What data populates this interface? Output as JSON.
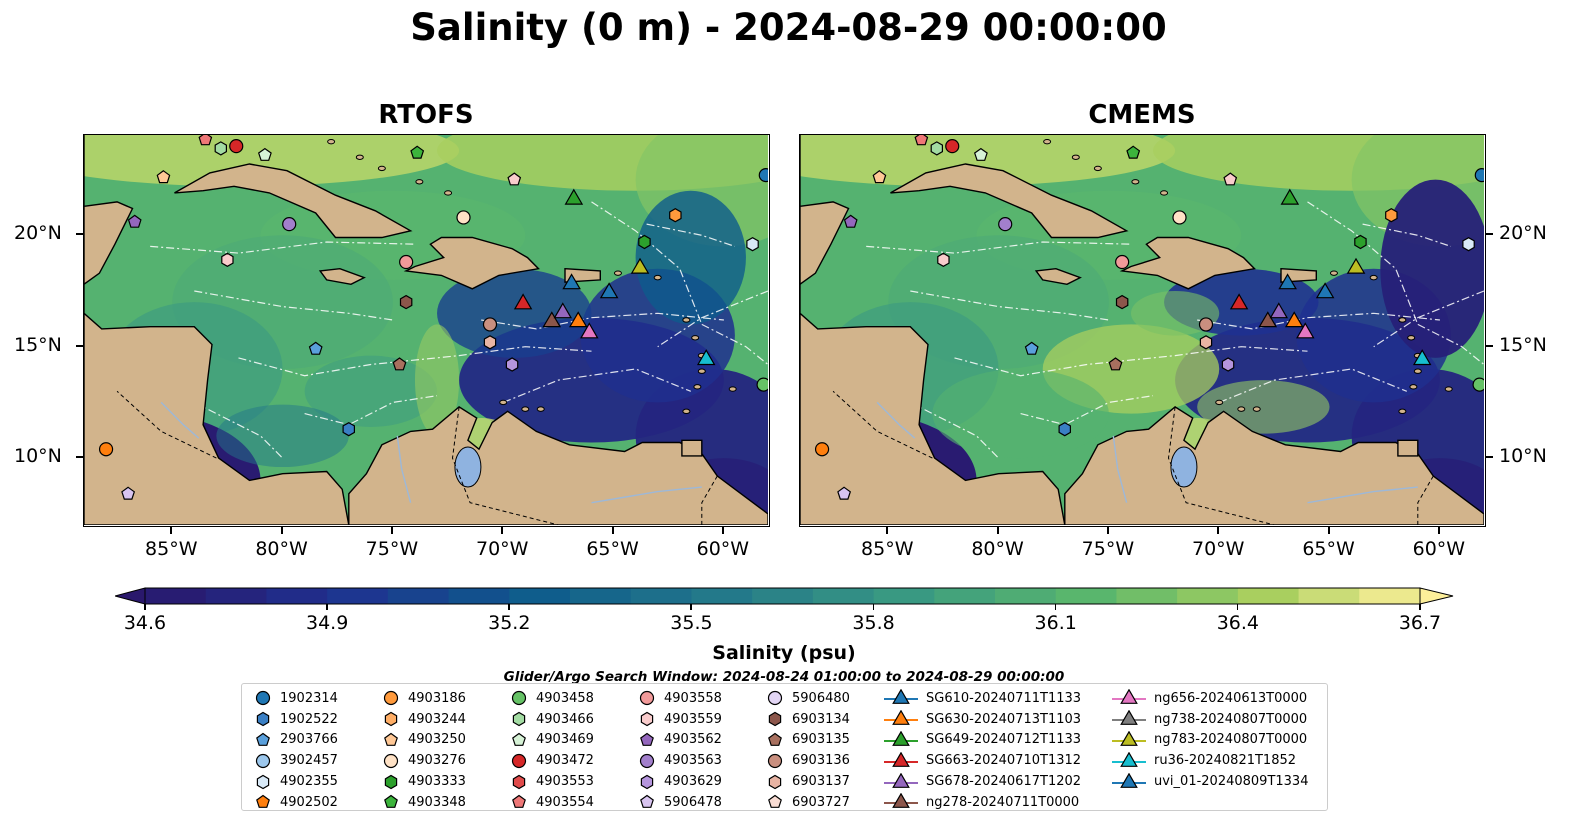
{
  "title": "Salinity (0 m) - 2024-08-29 00:00:00",
  "panels": [
    {
      "title": "RTOFS",
      "model": "rtofs"
    },
    {
      "title": "CMEMS",
      "model": "cmems"
    }
  ],
  "axes": {
    "lon_ticks": [
      "85°W",
      "80°W",
      "75°W",
      "70°W",
      "65°W",
      "60°W"
    ],
    "lon_values": [
      -85,
      -80,
      -75,
      -70,
      -65,
      -60
    ],
    "lat_ticks": [
      "20°N",
      "15°N",
      "10°N"
    ],
    "lat_values": [
      20,
      15,
      10
    ],
    "lon_range": [
      -89,
      -58
    ],
    "lat_range": [
      7,
      24.5
    ]
  },
  "colorbar": {
    "label": "Salinity (psu)",
    "ticks": [
      "34.6",
      "34.9",
      "35.2",
      "35.5",
      "35.8",
      "36.1",
      "36.4",
      "36.7"
    ],
    "range": [
      34.6,
      36.7
    ],
    "extend": "both",
    "colormap": "haline"
  },
  "search_window": "Glider/Argo Search Window: 2024-08-24 01:00:00 to 2024-08-29 00:00:00",
  "legend": {
    "columns": [
      [
        {
          "label": "1902314",
          "marker": "circle",
          "color": "#1f77b4"
        },
        {
          "label": "1902522",
          "marker": "hexagon",
          "color": "#3a7fc4"
        },
        {
          "label": "2903766",
          "marker": "pentagon",
          "color": "#5aa0dc"
        },
        {
          "label": "3902457",
          "marker": "circle",
          "color": "#9cc7ec"
        },
        {
          "label": "4902355",
          "marker": "hexagon",
          "color": "#d8e9f7"
        },
        {
          "label": "4902502",
          "marker": "pentagon",
          "color": "#ff7f0e"
        }
      ],
      [
        {
          "label": "4903186",
          "marker": "circle",
          "color": "#ff9a3c"
        },
        {
          "label": "4903244",
          "marker": "hexagon",
          "color": "#ffae66"
        },
        {
          "label": "4903250",
          "marker": "pentagon",
          "color": "#ffc896"
        },
        {
          "label": "4903276",
          "marker": "circle",
          "color": "#ffe2c6"
        },
        {
          "label": "4903333",
          "marker": "hexagon",
          "color": "#2ca02c"
        },
        {
          "label": "4903348",
          "marker": "pentagon",
          "color": "#3cb43c"
        }
      ],
      [
        {
          "label": "4903458",
          "marker": "circle",
          "color": "#66c266"
        },
        {
          "label": "4903466",
          "marker": "hexagon",
          "color": "#a3dca3"
        },
        {
          "label": "4903469",
          "marker": "pentagon",
          "color": "#d6f2d6"
        },
        {
          "label": "4903472",
          "marker": "circle",
          "color": "#d62728"
        },
        {
          "label": "4903553",
          "marker": "hexagon",
          "color": "#e04b4b"
        },
        {
          "label": "4903554",
          "marker": "pentagon",
          "color": "#ee7777"
        }
      ],
      [
        {
          "label": "4903558",
          "marker": "circle",
          "color": "#f29a9a"
        },
        {
          "label": "4903559",
          "marker": "hexagon",
          "color": "#f9cccc"
        },
        {
          "label": "4903562",
          "marker": "pentagon",
          "color": "#9467bd"
        },
        {
          "label": "4903563",
          "marker": "circle",
          "color": "#a27fcc"
        },
        {
          "label": "4903629",
          "marker": "hexagon",
          "color": "#b595dd"
        },
        {
          "label": "5906478",
          "marker": "pentagon",
          "color": "#d8c4f0"
        }
      ],
      [
        {
          "label": "5906480",
          "marker": "circle",
          "color": "#e3d6f5"
        },
        {
          "label": "6903134",
          "marker": "hexagon",
          "color": "#8c564b"
        },
        {
          "label": "6903135",
          "marker": "pentagon",
          "color": "#a8705f"
        },
        {
          "label": "6903136",
          "marker": "circle",
          "color": "#c98f7f"
        },
        {
          "label": "6903137",
          "marker": "hexagon",
          "color": "#e8b4a4"
        },
        {
          "label": "6903727",
          "marker": "pentagon",
          "color": "#f8dcd3"
        }
      ],
      [
        {
          "label": "SG610-20240711T1133",
          "marker": "triangle",
          "color": "#1f77b4"
        },
        {
          "label": "SG630-20240713T1103",
          "marker": "triangle",
          "color": "#ff7f0e"
        },
        {
          "label": "SG649-20240712T1133",
          "marker": "triangle",
          "color": "#2ca02c"
        },
        {
          "label": "SG663-20240710T1312",
          "marker": "triangle",
          "color": "#d62728"
        },
        {
          "label": "SG678-20240617T1202",
          "marker": "triangle",
          "color": "#9467bd"
        },
        {
          "label": "ng278-20240711T0000",
          "marker": "triangle",
          "color": "#8c564b"
        }
      ],
      [
        {
          "label": "ng656-20240613T0000",
          "marker": "triangle",
          "color": "#e377c2"
        },
        {
          "label": "ng738-20240807T0000",
          "marker": "triangle",
          "color": "#7f7f7f"
        },
        {
          "label": "ng783-20240807T0000",
          "marker": "triangle",
          "color": "#bcbd22"
        },
        {
          "label": "ru36-20240821T1852",
          "marker": "triangle",
          "color": "#17becf"
        },
        {
          "label": "uvi_01-20240809T1334",
          "marker": "triangle",
          "color": "#1f77b4"
        }
      ]
    ]
  },
  "map_markers": [
    {
      "marker": "circle",
      "color": "#1f77b4",
      "lon": -58.1,
      "lat": 22.7
    },
    {
      "marker": "hexagon",
      "color": "#d8e9f7",
      "lon": -58.7,
      "lat": 19.6
    },
    {
      "marker": "circle",
      "color": "#66c266",
      "lon": -58.2,
      "lat": 13.3
    },
    {
      "marker": "pentagon",
      "color": "#ee7777",
      "lon": -83.5,
      "lat": 24.3
    },
    {
      "marker": "hexagon",
      "color": "#a3dca3",
      "lon": -82.8,
      "lat": 23.9
    },
    {
      "marker": "circle",
      "color": "#d62728",
      "lon": -82.1,
      "lat": 24.0
    },
    {
      "marker": "pentagon",
      "color": "#d6f2d6",
      "lon": -80.8,
      "lat": 23.6
    },
    {
      "marker": "pentagon",
      "color": "#3cb43c",
      "lon": -73.9,
      "lat": 23.7
    },
    {
      "marker": "pentagon",
      "color": "#ffc896",
      "lon": -85.4,
      "lat": 22.6
    },
    {
      "marker": "pentagon",
      "color": "#f9cccc",
      "lon": -69.5,
      "lat": 22.5
    },
    {
      "marker": "pentagon",
      "color": "#9467bd",
      "lon": -86.7,
      "lat": 20.6
    },
    {
      "marker": "circle",
      "color": "#a27fcc",
      "lon": -79.7,
      "lat": 20.5
    },
    {
      "marker": "circle",
      "color": "#ffe2c6",
      "lon": -71.8,
      "lat": 20.8
    },
    {
      "marker": "hexagon",
      "color": "#ff9a3c",
      "lon": -62.2,
      "lat": 20.9
    },
    {
      "marker": "hexagon",
      "color": "#2ca02c",
      "lon": -63.6,
      "lat": 19.7
    },
    {
      "marker": "hexagon",
      "color": "#f9cccc",
      "lon": -82.5,
      "lat": 18.9
    },
    {
      "marker": "circle",
      "color": "#f29a9a",
      "lon": -74.4,
      "lat": 18.8
    },
    {
      "marker": "hexagon",
      "color": "#8c564b",
      "lon": -74.4,
      "lat": 17.0
    },
    {
      "marker": "circle",
      "color": "#c98f7f",
      "lon": -70.6,
      "lat": 16.0
    },
    {
      "marker": "hexagon",
      "color": "#e8b4a4",
      "lon": -70.6,
      "lat": 15.2
    },
    {
      "marker": "pentagon",
      "color": "#5aa0dc",
      "lon": -78.5,
      "lat": 14.9
    },
    {
      "marker": "pentagon",
      "color": "#a8705f",
      "lon": -74.7,
      "lat": 14.2
    },
    {
      "marker": "hexagon",
      "color": "#b595dd",
      "lon": -69.6,
      "lat": 14.2
    },
    {
      "marker": "hexagon",
      "color": "#3a7fc4",
      "lon": -77.0,
      "lat": 11.3
    },
    {
      "marker": "circle",
      "color": "#ff7f0e",
      "lon": -88.0,
      "lat": 10.4
    },
    {
      "marker": "pentagon",
      "color": "#d8c4f0",
      "lon": -87.0,
      "lat": 8.4
    },
    {
      "marker": "triangle",
      "color": "#2ca02c",
      "lon": -66.8,
      "lat": 21.7
    },
    {
      "marker": "triangle",
      "color": "#bcbd22",
      "lon": -63.8,
      "lat": 18.6
    },
    {
      "marker": "triangle",
      "color": "#1f77b4",
      "lon": -66.9,
      "lat": 17.9
    },
    {
      "marker": "triangle",
      "color": "#1f77b4",
      "lon": -65.2,
      "lat": 17.5
    },
    {
      "marker": "triangle",
      "color": "#d62728",
      "lon": -69.1,
      "lat": 17.0
    },
    {
      "marker": "triangle",
      "color": "#8c564b",
      "lon": -67.8,
      "lat": 16.2
    },
    {
      "marker": "triangle",
      "color": "#9467bd",
      "lon": -67.3,
      "lat": 16.6
    },
    {
      "marker": "triangle",
      "color": "#ff7f0e",
      "lon": -66.6,
      "lat": 16.2
    },
    {
      "marker": "triangle",
      "color": "#e377c2",
      "lon": -66.1,
      "lat": 15.7
    },
    {
      "marker": "triangle",
      "color": "#17becf",
      "lon": -60.8,
      "lat": 14.5
    }
  ]
}
